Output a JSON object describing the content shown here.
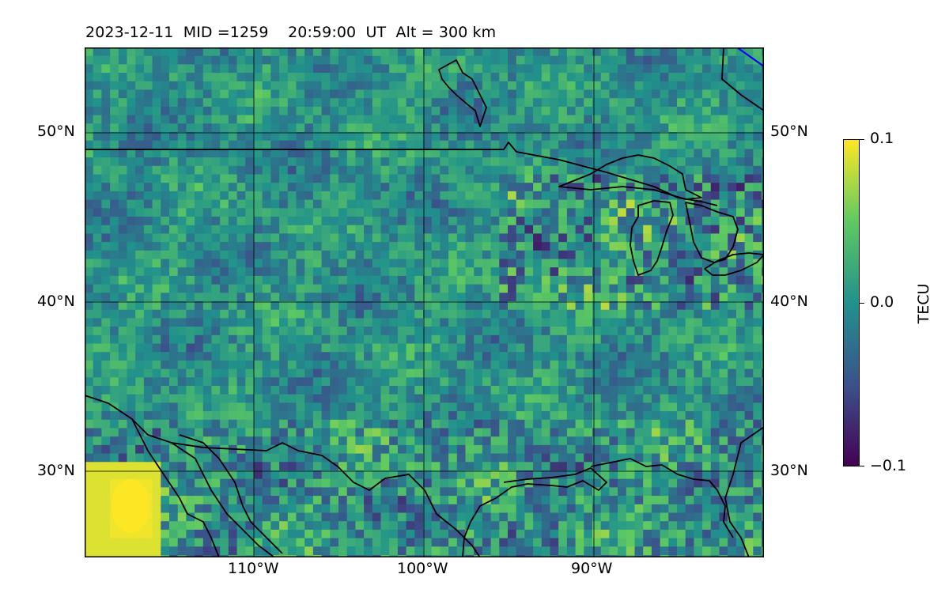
{
  "figure": {
    "date": "2023-12-11",
    "mid_label": "MID =1259",
    "time_label": "20:59:00  UT",
    "alt_label": "Alt = 300 km"
  },
  "map": {
    "projection": "equirectangular",
    "lon_range": [
      -120,
      -80
    ],
    "lat_range": [
      25,
      55
    ],
    "lat_ticks": [
      {
        "value": 50,
        "label": "50°N"
      },
      {
        "value": 40,
        "label": "40°N"
      },
      {
        "value": 30,
        "label": "30°N"
      }
    ],
    "lon_ticks": [
      {
        "value": -110,
        "label": "110°W"
      },
      {
        "value": -100,
        "label": "100°W"
      },
      {
        "value": -90,
        "label": "90°W"
      }
    ],
    "field": "TEC anomaly (gridded, noisy, higher variability east of 95°W and along southern edge)",
    "colormap": [
      "#440154",
      "#3b528b",
      "#21918c",
      "#5ec962",
      "#fde725"
    ],
    "boundary_color": "#000000",
    "highlight_line_color": "#0000ff"
  },
  "colorbar": {
    "min": -0.1,
    "max": 0.1,
    "ticks": [
      {
        "value": 0.1,
        "label": "0.1"
      },
      {
        "value": 0.0,
        "label": "0.0"
      },
      {
        "value": -0.1,
        "label": "−0.1"
      }
    ],
    "unit": "TECU"
  }
}
